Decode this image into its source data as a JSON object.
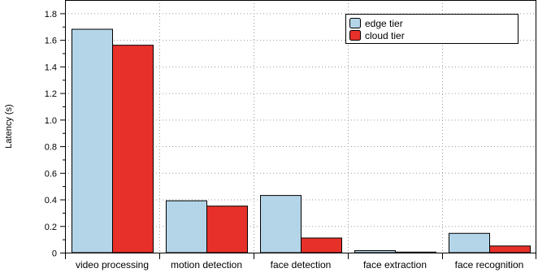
{
  "chart_data": {
    "type": "bar",
    "title": "",
    "xlabel": "",
    "ylabel": "Latency (s)",
    "ylim": [
      0,
      1.9
    ],
    "yticks": [
      0,
      0.2,
      0.4,
      0.6,
      0.8,
      1.0,
      1.2,
      1.4,
      1.6,
      1.8
    ],
    "ytick_labels": [
      "0",
      "0.2",
      "0.4",
      "0.6",
      "0.8",
      "1.0",
      "1.2",
      "1.4",
      "1.6",
      "1.8"
    ],
    "grid": true,
    "legend_position": "top-right",
    "categories": [
      "video processing",
      "motion detection",
      "face detection",
      "face extraction",
      "face recognition"
    ],
    "series": [
      {
        "name": "edge tier",
        "color": "#b4d5e8",
        "values": [
          1.68,
          0.39,
          0.43,
          0.015,
          0.145
        ]
      },
      {
        "name": "cloud tier",
        "color": "#e8302a",
        "values": [
          1.56,
          0.35,
          0.11,
          0.004,
          0.05
        ]
      }
    ]
  }
}
